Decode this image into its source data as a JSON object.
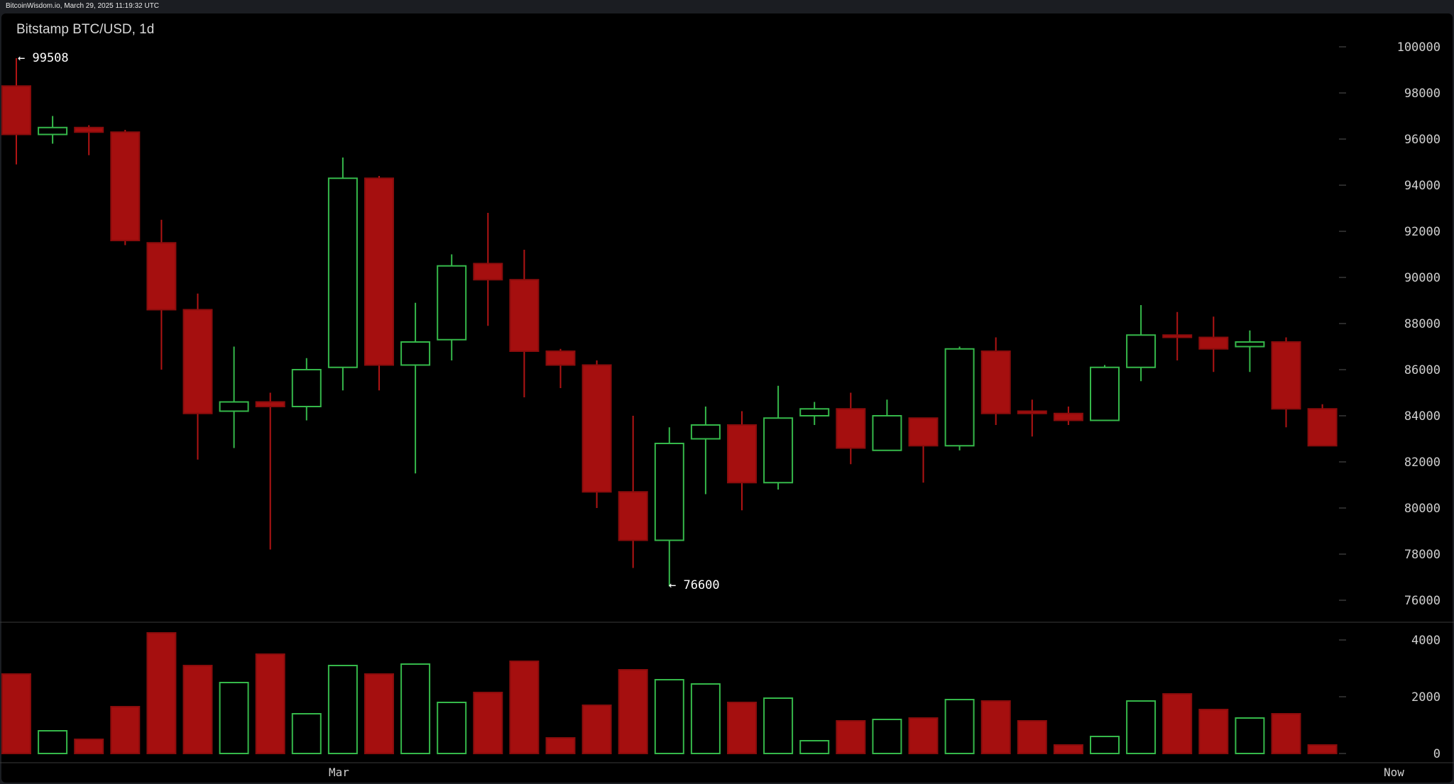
{
  "header": {
    "timestamp": "BitcoinWisdom.io, March 29, 2025 11:19:32 UTC"
  },
  "chart_data": {
    "type": "candlestick",
    "title": "Bitstamp BTC/USD, 1d",
    "price_axis": {
      "range": [
        75000,
        101000
      ],
      "ticks": [
        "100000",
        "98000",
        "96000",
        "94000",
        "92000",
        "90000",
        "88000",
        "86000",
        "84000",
        "82000",
        "80000",
        "78000",
        "76000"
      ]
    },
    "volume_axis": {
      "range": [
        0,
        4500
      ],
      "ticks": [
        "4000",
        "2000",
        "0"
      ]
    },
    "x_labels": {
      "left": "Mar",
      "right": "Now"
    },
    "annotations": {
      "high": "← 99508",
      "low": "← 76600"
    },
    "colors": {
      "up": "#2ea043",
      "down": "#a50f0f",
      "background": "#000000",
      "text": "#cfcfcf"
    },
    "candles": [
      {
        "o": 98300,
        "h": 99508,
        "l": 94900,
        "c": 96200,
        "v": 2800
      },
      {
        "o": 96200,
        "h": 97000,
        "l": 95800,
        "c": 96500,
        "v": 800
      },
      {
        "o": 96500,
        "h": 96600,
        "l": 95300,
        "c": 96300,
        "v": 500
      },
      {
        "o": 96300,
        "h": 96400,
        "l": 91400,
        "c": 91600,
        "v": 1650
      },
      {
        "o": 91500,
        "h": 92500,
        "l": 86000,
        "c": 88600,
        "v": 4250
      },
      {
        "o": 88600,
        "h": 89300,
        "l": 82100,
        "c": 84100,
        "v": 3100
      },
      {
        "o": 84200,
        "h": 87000,
        "l": 82600,
        "c": 84600,
        "v": 2500
      },
      {
        "o": 84600,
        "h": 85000,
        "l": 78200,
        "c": 84400,
        "v": 3500
      },
      {
        "o": 84400,
        "h": 86500,
        "l": 83800,
        "c": 86000,
        "v": 1400
      },
      {
        "o": 86100,
        "h": 95200,
        "l": 85100,
        "c": 94300,
        "v": 3100
      },
      {
        "o": 94300,
        "h": 94400,
        "l": 85100,
        "c": 86200,
        "v": 2800
      },
      {
        "o": 86200,
        "h": 88900,
        "l": 81500,
        "c": 87200,
        "v": 3150
      },
      {
        "o": 87300,
        "h": 91000,
        "l": 86400,
        "c": 90500,
        "v": 1800
      },
      {
        "o": 90600,
        "h": 92800,
        "l": 87900,
        "c": 89900,
        "v": 2150
      },
      {
        "o": 89900,
        "h": 91200,
        "l": 84800,
        "c": 86800,
        "v": 3250
      },
      {
        "o": 86800,
        "h": 86900,
        "l": 85200,
        "c": 86200,
        "v": 550
      },
      {
        "o": 86200,
        "h": 86400,
        "l": 80000,
        "c": 80700,
        "v": 1700
      },
      {
        "o": 80700,
        "h": 84000,
        "l": 77400,
        "c": 78600,
        "v": 2950
      },
      {
        "o": 78600,
        "h": 83500,
        "l": 76600,
        "c": 82800,
        "v": 2600
      },
      {
        "o": 83000,
        "h": 84400,
        "l": 80600,
        "c": 83600,
        "v": 2450
      },
      {
        "o": 83600,
        "h": 84200,
        "l": 79900,
        "c": 81100,
        "v": 1800
      },
      {
        "o": 81100,
        "h": 85300,
        "l": 80800,
        "c": 83900,
        "v": 1950
      },
      {
        "o": 84000,
        "h": 84600,
        "l": 83600,
        "c": 84300,
        "v": 450
      },
      {
        "o": 84300,
        "h": 85000,
        "l": 81900,
        "c": 82600,
        "v": 1150
      },
      {
        "o": 82500,
        "h": 84700,
        "l": 82500,
        "c": 84000,
        "v": 1200
      },
      {
        "o": 83900,
        "h": 83900,
        "l": 81100,
        "c": 82700,
        "v": 1250
      },
      {
        "o": 82700,
        "h": 87000,
        "l": 82500,
        "c": 86900,
        "v": 1900
      },
      {
        "o": 86800,
        "h": 87400,
        "l": 83600,
        "c": 84100,
        "v": 1850
      },
      {
        "o": 84200,
        "h": 84700,
        "l": 83100,
        "c": 84100,
        "v": 1150
      },
      {
        "o": 84100,
        "h": 84400,
        "l": 83600,
        "c": 83800,
        "v": 300
      },
      {
        "o": 83800,
        "h": 86200,
        "l": 83800,
        "c": 86100,
        "v": 600
      },
      {
        "o": 86100,
        "h": 88800,
        "l": 85500,
        "c": 87500,
        "v": 1850
      },
      {
        "o": 87500,
        "h": 88500,
        "l": 86400,
        "c": 87400,
        "v": 2100
      },
      {
        "o": 87400,
        "h": 88300,
        "l": 85900,
        "c": 86900,
        "v": 1550
      },
      {
        "o": 87000,
        "h": 87700,
        "l": 85900,
        "c": 87200,
        "v": 1250
      },
      {
        "o": 87200,
        "h": 87400,
        "l": 83500,
        "c": 84300,
        "v": 1400
      },
      {
        "o": 84300,
        "h": 84500,
        "l": 82700,
        "c": 82700,
        "v": 300
      }
    ]
  }
}
